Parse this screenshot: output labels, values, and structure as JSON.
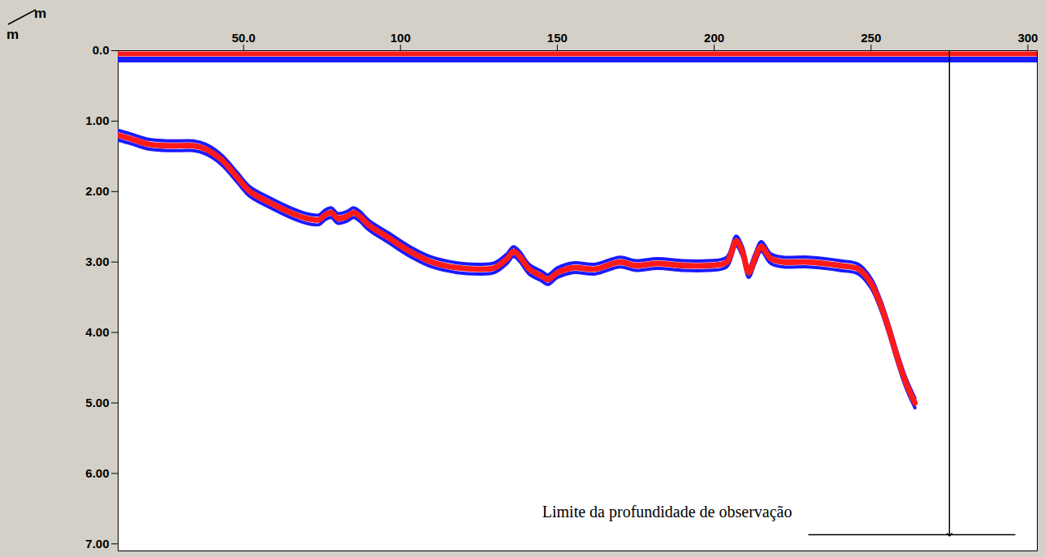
{
  "chart_data": {
    "type": "line",
    "x_label": "m",
    "y_label": "m",
    "xlim": [
      10,
      303
    ],
    "ylim": [
      0,
      7.1
    ],
    "xticks": [
      {
        "value": 50,
        "label": "50.0"
      },
      100,
      150,
      200,
      250,
      300
    ],
    "yticks": [
      {
        "value": 0,
        "label": "0.0"
      },
      {
        "value": 1,
        "label": "1.00"
      },
      {
        "value": 2,
        "label": "2.00"
      },
      {
        "value": 3,
        "label": "3.00"
      },
      {
        "value": 4,
        "label": "4.00"
      },
      {
        "value": 5,
        "label": "5.00"
      },
      {
        "value": 6,
        "label": "6.00"
      },
      {
        "value": 7,
        "label": "7.00"
      }
    ],
    "grid": false,
    "color": "#ff1a1a",
    "x": [
      10,
      14,
      20,
      27,
      34,
      38,
      43,
      48,
      52,
      58,
      65,
      70,
      74,
      76,
      78,
      80,
      83,
      85,
      87,
      90,
      96,
      103,
      110,
      118,
      125,
      130,
      134,
      136,
      138,
      141,
      145,
      147,
      150,
      155,
      162,
      170,
      175,
      182,
      190,
      198,
      204,
      207,
      209,
      211,
      213,
      215,
      218,
      222,
      230,
      240,
      246,
      250,
      253,
      256,
      258,
      261,
      264
    ],
    "values": [
      1.2,
      1.25,
      1.33,
      1.35,
      1.35,
      1.4,
      1.55,
      1.8,
      2.0,
      2.15,
      2.3,
      2.38,
      2.4,
      2.33,
      2.3,
      2.38,
      2.35,
      2.3,
      2.35,
      2.48,
      2.65,
      2.85,
      3.0,
      3.08,
      3.1,
      3.08,
      2.95,
      2.85,
      2.92,
      3.1,
      3.2,
      3.25,
      3.15,
      3.08,
      3.1,
      3.0,
      3.05,
      3.02,
      3.05,
      3.05,
      3.0,
      2.7,
      2.85,
      3.15,
      2.95,
      2.78,
      2.95,
      3.0,
      3.0,
      3.05,
      3.1,
      3.3,
      3.6,
      4.0,
      4.3,
      4.7,
      5.0
    ],
    "annotation": {
      "text": "Limite da profundidade de observação",
      "x": 185,
      "y": 6.55,
      "arrow": {
        "x": 275,
        "y1": 0,
        "y2": 6.87
      },
      "line": {
        "x1": 230,
        "x2": 296,
        "y": 6.87
      }
    }
  }
}
